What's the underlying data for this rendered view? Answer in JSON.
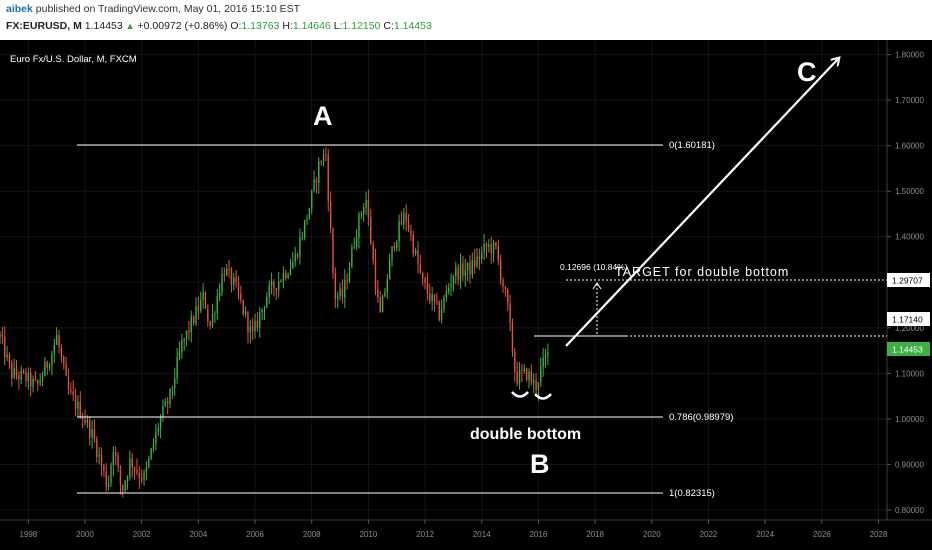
{
  "header": {
    "author": "aibek",
    "published": "published on TradingView.com, May 01, 2016 15:10 EST",
    "symbol": "FX:EURUSD, M",
    "last": "1.14453",
    "change": "+0.00972 (+0.86%)",
    "open_label": "O:",
    "open": "1.13763",
    "high_label": "H:",
    "high": "1.14646",
    "low_label": "L:",
    "low": "1.12150",
    "close_label": "C:",
    "close": "1.14453"
  },
  "chart_data": {
    "type": "candlestick",
    "title": "Euro Fx/U.S. Dollar, M, FXCM",
    "x_ticks": [
      "1998",
      "2000",
      "2002",
      "2004",
      "2006",
      "2008",
      "2010",
      "2012",
      "2014",
      "2016",
      "2018",
      "2020",
      "2022",
      "2024",
      "2026",
      "2028"
    ],
    "y_ticks": [
      "0.80000",
      "0.90000",
      "1.00000",
      "1.10000",
      "1.20000",
      "1.30000",
      "1.40000",
      "1.50000",
      "1.60000",
      "1.70000",
      "1.80000"
    ],
    "xlim": [
      1997.0,
      2028.3
    ],
    "ylim": [
      0.778,
      1.832
    ],
    "colors": {
      "up": "#3cb043",
      "down": "#e0523f",
      "background": "#000000",
      "annotation": "#ffffff"
    },
    "anchors": [
      [
        1997.0,
        1.18
      ],
      [
        1997.4,
        1.1
      ],
      [
        1997.9,
        1.09
      ],
      [
        1998.3,
        1.07
      ],
      [
        1998.8,
        1.14
      ],
      [
        1999.0,
        1.18
      ],
      [
        1999.4,
        1.06
      ],
      [
        1999.9,
        1.01
      ],
      [
        2000.3,
        0.96
      ],
      [
        2000.8,
        0.85
      ],
      [
        2001.0,
        0.94
      ],
      [
        2001.3,
        0.84
      ],
      [
        2001.6,
        0.91
      ],
      [
        2001.9,
        0.88
      ],
      [
        2002.1,
        0.87
      ],
      [
        2002.6,
        0.99
      ],
      [
        2003.0,
        1.05
      ],
      [
        2003.4,
        1.16
      ],
      [
        2003.9,
        1.23
      ],
      [
        2004.2,
        1.27
      ],
      [
        2004.4,
        1.2
      ],
      [
        2004.9,
        1.33
      ],
      [
        2005.3,
        1.29
      ],
      [
        2005.9,
        1.18
      ],
      [
        2006.4,
        1.27
      ],
      [
        2006.9,
        1.31
      ],
      [
        2007.4,
        1.35
      ],
      [
        2007.9,
        1.46
      ],
      [
        2008.3,
        1.57
      ],
      [
        2008.5,
        1.58
      ],
      [
        2008.8,
        1.27
      ],
      [
        2009.1,
        1.27
      ],
      [
        2009.6,
        1.42
      ],
      [
        2009.9,
        1.49
      ],
      [
        2010.4,
        1.22
      ],
      [
        2010.9,
        1.39
      ],
      [
        2011.3,
        1.45
      ],
      [
        2011.9,
        1.3
      ],
      [
        2012.5,
        1.23
      ],
      [
        2013.0,
        1.32
      ],
      [
        2013.6,
        1.33
      ],
      [
        2014.2,
        1.38
      ],
      [
        2014.5,
        1.37
      ],
      [
        2014.9,
        1.25
      ],
      [
        2015.2,
        1.09
      ],
      [
        2015.6,
        1.1
      ],
      [
        2015.9,
        1.07
      ],
      [
        2016.1,
        1.11
      ],
      [
        2016.3,
        1.14
      ]
    ]
  },
  "annotations": {
    "label_a": "A",
    "label_b": "B",
    "label_c": "C",
    "fib_0": "0(1.60181)",
    "fib_786": "0.786(0.98979)",
    "fib_1": "1(0.82315)",
    "double_bottom": "double bottom",
    "target": "TARGET  for double bottom",
    "measure": "0.12696 (10.84%)",
    "price_boxes": [
      "1.29707",
      "1.17140",
      "1.14453"
    ]
  }
}
